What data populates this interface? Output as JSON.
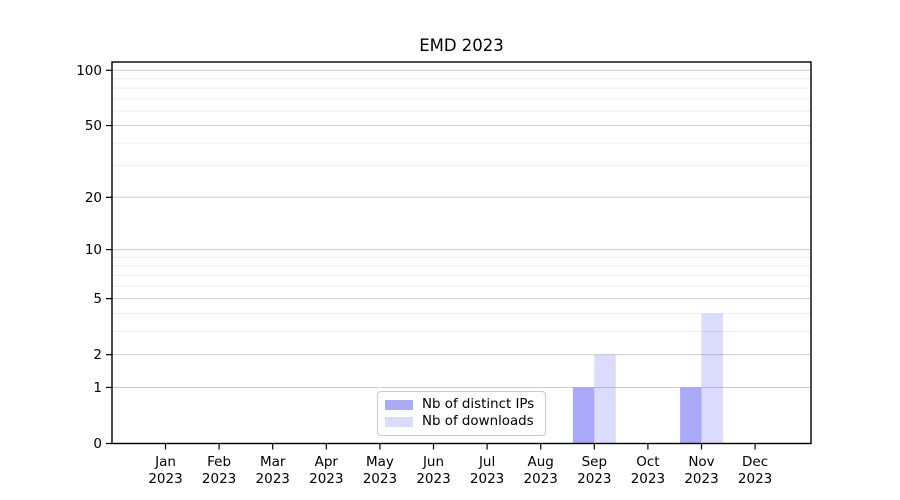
{
  "colors": {
    "background": "#ffffff",
    "axis": "#000000",
    "text": "#000000",
    "major_grid": "#cdcdcd",
    "minor_grid": "#ededed",
    "legend_border": "#c9c9c9",
    "bar_strong_hex": "#aaaaf7",
    "bar_light_hex": "#dbdbfa"
  },
  "chart_data": {
    "type": "bar",
    "title": "EMD 2023",
    "xlabel": "",
    "ylabel": "",
    "year": "2023",
    "months": [
      "Jan",
      "Feb",
      "Mar",
      "Apr",
      "May",
      "Jun",
      "Jul",
      "Aug",
      "Sep",
      "Oct",
      "Nov",
      "Dec"
    ],
    "categories": [
      "Jan 2023",
      "Feb 2023",
      "Mar 2023",
      "Apr 2023",
      "May 2023",
      "Jun 2023",
      "Jul 2023",
      "Aug 2023",
      "Sep 2023",
      "Oct 2023",
      "Nov 2023",
      "Dec 2023"
    ],
    "series": [
      {
        "name": "Nb of distinct IPs",
        "color": "rgba(105,105,245,0.57)",
        "values": [
          0,
          0,
          0,
          0,
          0,
          0,
          0,
          0,
          1,
          0,
          1,
          0
        ]
      },
      {
        "name": "Nb of downloads",
        "color": "rgba(105,105,245,0.24)",
        "values": [
          0,
          0,
          0,
          0,
          0,
          0,
          0,
          0,
          2,
          0,
          4,
          0
        ]
      }
    ],
    "y_axis": {
      "scale": "log10(1+y)",
      "tick_values": [
        0,
        1,
        2,
        5,
        10,
        20,
        50,
        100
      ],
      "minor_gridlines": [
        3,
        4,
        6,
        7,
        8,
        9,
        30,
        40,
        60,
        70,
        80,
        90
      ],
      "ylim": [
        0,
        113
      ]
    },
    "legend": {
      "location": "lower center",
      "entries": [
        "Nb of distinct IPs",
        "Nb of downloads"
      ]
    },
    "grid": true
  }
}
